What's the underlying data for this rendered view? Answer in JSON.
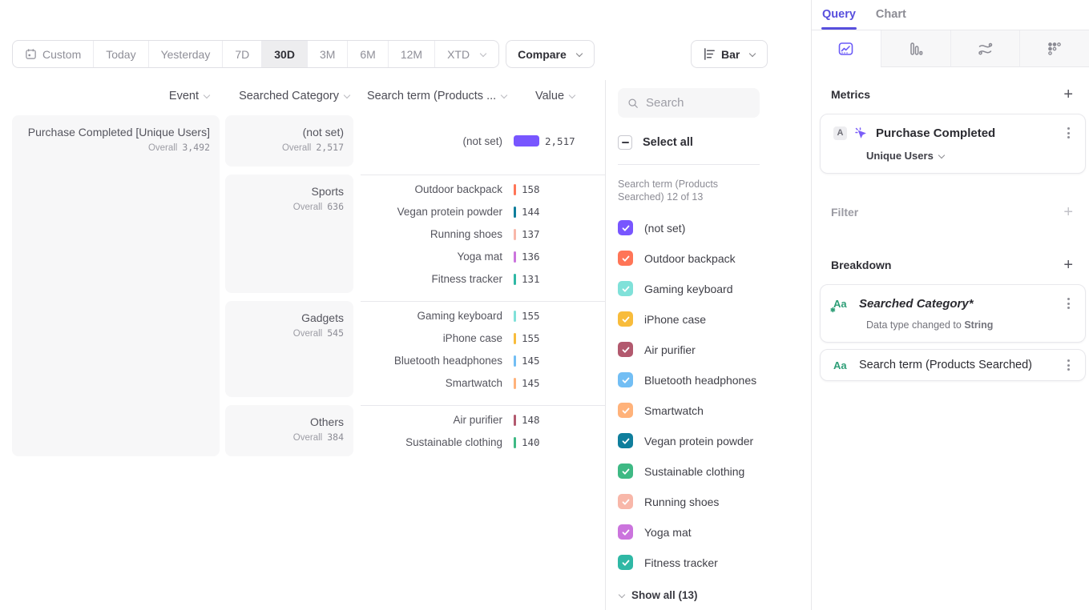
{
  "toolbar": {
    "date_ranges": [
      "Custom",
      "Today",
      "Yesterday",
      "7D",
      "30D",
      "3M",
      "6M",
      "12M",
      "XTD"
    ],
    "active_range": "30D",
    "compare_label": "Compare",
    "chart_type_label": "Bar"
  },
  "table": {
    "columns": [
      "Event",
      "Searched Category",
      "Search term (Products ...",
      "Value"
    ],
    "overall_label": "Overall",
    "event": {
      "name": "Purchase Completed [Unique Users]",
      "overall": "3,492"
    },
    "max_value": 2517,
    "groups": [
      {
        "category": "(not set)",
        "overall": "2,517",
        "rows": [
          {
            "term": "(not set)",
            "value": "2,517",
            "n": 2517,
            "color": "#7856ff"
          }
        ]
      },
      {
        "category": "Sports",
        "overall": "636",
        "rows": [
          {
            "term": "Outdoor backpack",
            "value": "158",
            "n": 158,
            "color": "#ff7557"
          },
          {
            "term": "Vegan protein powder",
            "value": "144",
            "n": 144,
            "color": "#0f7e9c"
          },
          {
            "term": "Running shoes",
            "value": "137",
            "n": 137,
            "color": "#f8b7a9"
          },
          {
            "term": "Yoga mat",
            "value": "136",
            "n": 136,
            "color": "#cb74dd"
          },
          {
            "term": "Fitness tracker",
            "value": "131",
            "n": 131,
            "color": "#2fb8a5"
          }
        ]
      },
      {
        "category": "Gadgets",
        "overall": "545",
        "rows": [
          {
            "term": "Gaming keyboard",
            "value": "155",
            "n": 155,
            "color": "#80e1d9"
          },
          {
            "term": "iPhone case",
            "value": "155",
            "n": 155,
            "color": "#f8bc3b"
          },
          {
            "term": "Bluetooth headphones",
            "value": "145",
            "n": 145,
            "color": "#72bef4"
          },
          {
            "term": "Smartwatch",
            "value": "145",
            "n": 145,
            "color": "#ffb27a"
          }
        ]
      },
      {
        "category": "Others",
        "overall": "384",
        "rows": [
          {
            "term": "Air purifier",
            "value": "148",
            "n": 148,
            "color": "#b2596e"
          },
          {
            "term": "Sustainable clothing",
            "value": "140",
            "n": 140,
            "color": "#3eb984"
          }
        ]
      }
    ]
  },
  "filter_panel": {
    "search_placeholder": "Search",
    "select_all_label": "Select all",
    "list_label": "Search term (Products Searched) 12 of 13",
    "items": [
      {
        "label": "(not set)",
        "color": "#7856ff",
        "checked": true,
        "pattern": false
      },
      {
        "label": "Outdoor backpack",
        "color": "#ff7557",
        "checked": true,
        "pattern": false
      },
      {
        "label": "Gaming keyboard",
        "color": "#80e1d9",
        "checked": true,
        "pattern": false
      },
      {
        "label": "iPhone case",
        "color": "#f8bc3b",
        "checked": true,
        "pattern": false
      },
      {
        "label": "Air purifier",
        "color": "#b2596e",
        "checked": true,
        "pattern": false
      },
      {
        "label": "Bluetooth headphones",
        "color": "#72bef4",
        "checked": true,
        "pattern": false
      },
      {
        "label": "Smartwatch",
        "color": "#ffb27a",
        "checked": true,
        "pattern": false
      },
      {
        "label": "Vegan protein powder",
        "color": "#0f7e9c",
        "checked": true,
        "pattern": false
      },
      {
        "label": "Sustainable clothing",
        "color": "#3eb984",
        "checked": true,
        "pattern": false
      },
      {
        "label": "Running shoes",
        "color": "#f8b7a9",
        "checked": true,
        "pattern": false
      },
      {
        "label": "Yoga mat",
        "color": "#cb74dd",
        "checked": true,
        "pattern": false
      },
      {
        "label": "Fitness tracker",
        "color": "#2fb8a5",
        "checked": true,
        "pattern": true
      }
    ],
    "show_all_label": "Show all (13)"
  },
  "query_panel": {
    "tabs": {
      "query": "Query",
      "chart": "Chart"
    },
    "active_tab": "Query",
    "report_tabs": [
      "insights",
      "funnels",
      "flows",
      "retention"
    ],
    "metrics": {
      "heading": "Metrics",
      "add_label": "+",
      "event_letter": "A",
      "event_name": "Purchase Completed",
      "counting_method": "Unique Users"
    },
    "filter": {
      "heading": "Filter",
      "add_label": "+"
    },
    "breakdown": {
      "heading": "Breakdown",
      "add_label": "+",
      "items": [
        {
          "icon": "Aa",
          "label": "Searched Category*",
          "note_prefix": "Data type changed to ",
          "note_bold": "String"
        },
        {
          "icon": "Aa",
          "label": "Search term (Products Searched)"
        }
      ]
    }
  },
  "colors": {
    "accent_purple": "#584fdd",
    "card_bg": "#f7f7f8",
    "border": "#e8e8ec"
  }
}
